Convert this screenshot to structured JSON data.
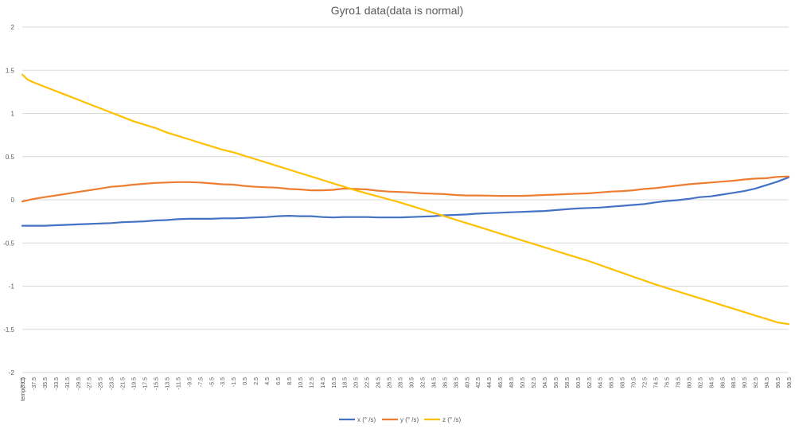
{
  "chart_data": {
    "type": "line",
    "title": "Gyro1 data(data is normal)",
    "xlabel": "",
    "ylabel": "",
    "ylim": [
      -2,
      2
    ],
    "yticks": [
      2,
      1.5,
      1,
      0.5,
      0,
      -0.5,
      -1,
      -1.5,
      -2
    ],
    "xrange": [
      -39.5,
      98.5
    ],
    "x_first_label": "temp(° C)",
    "x_tick_labels": [
      "-39.5",
      "-37.5",
      "-35.5",
      "-33.5",
      "-31.5",
      "-29.5",
      "-27.5",
      "-25.5",
      "-23.5",
      "-21.5",
      "-19.5",
      "-17.5",
      "-15.5",
      "-13.5",
      "-11.5",
      "-9.5",
      "-7.5",
      "-5.5",
      "-3.5",
      "-1.5",
      "0.5",
      "2.5",
      "4.5",
      "6.5",
      "8.5",
      "10.5",
      "12.5",
      "14.5",
      "16.5",
      "18.5",
      "20.5",
      "22.5",
      "24.5",
      "26.5",
      "28.5",
      "30.5",
      "32.5",
      "34.5",
      "36.5",
      "38.5",
      "40.5",
      "42.5",
      "44.5",
      "46.5",
      "48.5",
      "50.5",
      "52.5",
      "54.5",
      "56.5",
      "58.5",
      "60.5",
      "62.5",
      "64.5",
      "66.5",
      "68.5",
      "70.5",
      "72.5",
      "74.5",
      "76.5",
      "78.5",
      "80.5",
      "82.5",
      "84.5",
      "86.5",
      "88.5",
      "90.5",
      "92.5",
      "94.5",
      "96.5",
      "98.5"
    ],
    "legend_position": "bottom",
    "series": [
      {
        "name": "x (° /s)",
        "color": "#4472c4",
        "x": [
          -39.5,
          -37.5,
          -35.5,
          -33.5,
          -31.5,
          -29.5,
          -27.5,
          -25.5,
          -23.5,
          -21.5,
          -19.5,
          -17.5,
          -15.5,
          -13.5,
          -11.5,
          -9.5,
          -7.5,
          -5.5,
          -3.5,
          -1.5,
          0.5,
          2.5,
          4.5,
          6.5,
          8.5,
          10.5,
          12.5,
          14.5,
          16.5,
          18.5,
          20.5,
          22.5,
          24.5,
          26.5,
          28.5,
          30.5,
          32.5,
          34.5,
          36.5,
          38.5,
          40.5,
          42.5,
          44.5,
          46.5,
          48.5,
          50.5,
          52.5,
          54.5,
          56.5,
          58.5,
          60.5,
          62.5,
          64.5,
          66.5,
          68.5,
          70.5,
          72.5,
          74.5,
          76.5,
          78.5,
          80.5,
          82.5,
          84.5,
          86.5,
          88.5,
          90.5,
          92.5,
          94.5,
          96.5,
          98.5
        ],
        "values": [
          -0.3,
          -0.3,
          -0.3,
          -0.295,
          -0.29,
          -0.285,
          -0.28,
          -0.275,
          -0.27,
          -0.26,
          -0.255,
          -0.25,
          -0.24,
          -0.235,
          -0.225,
          -0.22,
          -0.22,
          -0.22,
          -0.215,
          -0.215,
          -0.21,
          -0.205,
          -0.2,
          -0.19,
          -0.185,
          -0.19,
          -0.19,
          -0.2,
          -0.205,
          -0.2,
          -0.2,
          -0.2,
          -0.205,
          -0.205,
          -0.205,
          -0.2,
          -0.195,
          -0.19,
          -0.18,
          -0.175,
          -0.17,
          -0.16,
          -0.155,
          -0.15,
          -0.145,
          -0.14,
          -0.135,
          -0.13,
          -0.12,
          -0.11,
          -0.1,
          -0.095,
          -0.09,
          -0.08,
          -0.07,
          -0.06,
          -0.05,
          -0.03,
          -0.015,
          -0.005,
          0.01,
          0.03,
          0.04,
          0.06,
          0.08,
          0.1,
          0.13,
          0.17,
          0.21,
          0.26
        ]
      },
      {
        "name": "y (° /s)",
        "color": "#ed7d31",
        "x": [
          -39.5,
          -37.5,
          -35.5,
          -33.5,
          -31.5,
          -29.5,
          -27.5,
          -25.5,
          -23.5,
          -21.5,
          -19.5,
          -17.5,
          -15.5,
          -13.5,
          -11.5,
          -9.5,
          -7.5,
          -5.5,
          -3.5,
          -1.5,
          0.5,
          2.5,
          4.5,
          6.5,
          8.5,
          10.5,
          12.5,
          14.5,
          16.5,
          18.5,
          20.5,
          22.5,
          24.5,
          26.5,
          28.5,
          30.5,
          32.5,
          34.5,
          36.5,
          38.5,
          40.5,
          42.5,
          44.5,
          46.5,
          48.5,
          50.5,
          52.5,
          54.5,
          56.5,
          58.5,
          60.5,
          62.5,
          64.5,
          66.5,
          68.5,
          70.5,
          72.5,
          74.5,
          76.5,
          78.5,
          80.5,
          82.5,
          84.5,
          86.5,
          88.5,
          90.5,
          92.5,
          94.5,
          96.5,
          98.5
        ],
        "values": [
          -0.02,
          0.01,
          0.03,
          0.05,
          0.07,
          0.09,
          0.11,
          0.13,
          0.15,
          0.16,
          0.175,
          0.185,
          0.195,
          0.2,
          0.205,
          0.205,
          0.2,
          0.19,
          0.18,
          0.175,
          0.16,
          0.15,
          0.145,
          0.14,
          0.125,
          0.12,
          0.11,
          0.11,
          0.115,
          0.13,
          0.125,
          0.12,
          0.105,
          0.095,
          0.09,
          0.085,
          0.075,
          0.07,
          0.065,
          0.055,
          0.05,
          0.05,
          0.048,
          0.045,
          0.045,
          0.045,
          0.05,
          0.055,
          0.06,
          0.065,
          0.07,
          0.075,
          0.085,
          0.095,
          0.1,
          0.11,
          0.125,
          0.135,
          0.15,
          0.165,
          0.18,
          0.19,
          0.2,
          0.21,
          0.22,
          0.235,
          0.245,
          0.25,
          0.265,
          0.27
        ]
      },
      {
        "name": "z (° /s)",
        "color": "#ffc000",
        "x": [
          -39.5,
          -38.5,
          -37.5,
          -35.5,
          -33.5,
          -31.5,
          -29.5,
          -27.5,
          -25.5,
          -23.5,
          -21.5,
          -19.5,
          -17.5,
          -15.5,
          -13.5,
          -11.5,
          -9.5,
          -7.5,
          -5.5,
          -3.5,
          -1.5,
          0.5,
          2.5,
          4.5,
          6.5,
          8.5,
          10.5,
          12.5,
          14.5,
          16.5,
          18.5,
          20.5,
          22.5,
          24.5,
          26.5,
          28.5,
          30.5,
          32.5,
          34.5,
          36.5,
          38.5,
          40.5,
          42.5,
          44.5,
          46.5,
          48.5,
          50.5,
          52.5,
          54.5,
          56.5,
          58.5,
          60.5,
          62.5,
          64.5,
          66.5,
          68.5,
          70.5,
          72.5,
          74.5,
          76.5,
          78.5,
          80.5,
          82.5,
          84.5,
          86.5,
          88.5,
          90.5,
          92.5,
          94.5,
          96.5,
          98.5
        ],
        "values": [
          1.45,
          1.39,
          1.36,
          1.31,
          1.26,
          1.21,
          1.16,
          1.11,
          1.06,
          1.01,
          0.96,
          0.91,
          0.87,
          0.83,
          0.78,
          0.74,
          0.7,
          0.66,
          0.62,
          0.58,
          0.55,
          0.51,
          0.47,
          0.43,
          0.39,
          0.35,
          0.31,
          0.27,
          0.23,
          0.19,
          0.15,
          0.11,
          0.075,
          0.04,
          0.005,
          -0.03,
          -0.07,
          -0.11,
          -0.15,
          -0.19,
          -0.23,
          -0.27,
          -0.31,
          -0.35,
          -0.39,
          -0.43,
          -0.47,
          -0.51,
          -0.55,
          -0.59,
          -0.63,
          -0.67,
          -0.71,
          -0.755,
          -0.8,
          -0.845,
          -0.89,
          -0.935,
          -0.98,
          -1.02,
          -1.06,
          -1.1,
          -1.14,
          -1.18,
          -1.22,
          -1.26,
          -1.3,
          -1.34,
          -1.38,
          -1.42,
          -1.44
        ]
      }
    ]
  }
}
